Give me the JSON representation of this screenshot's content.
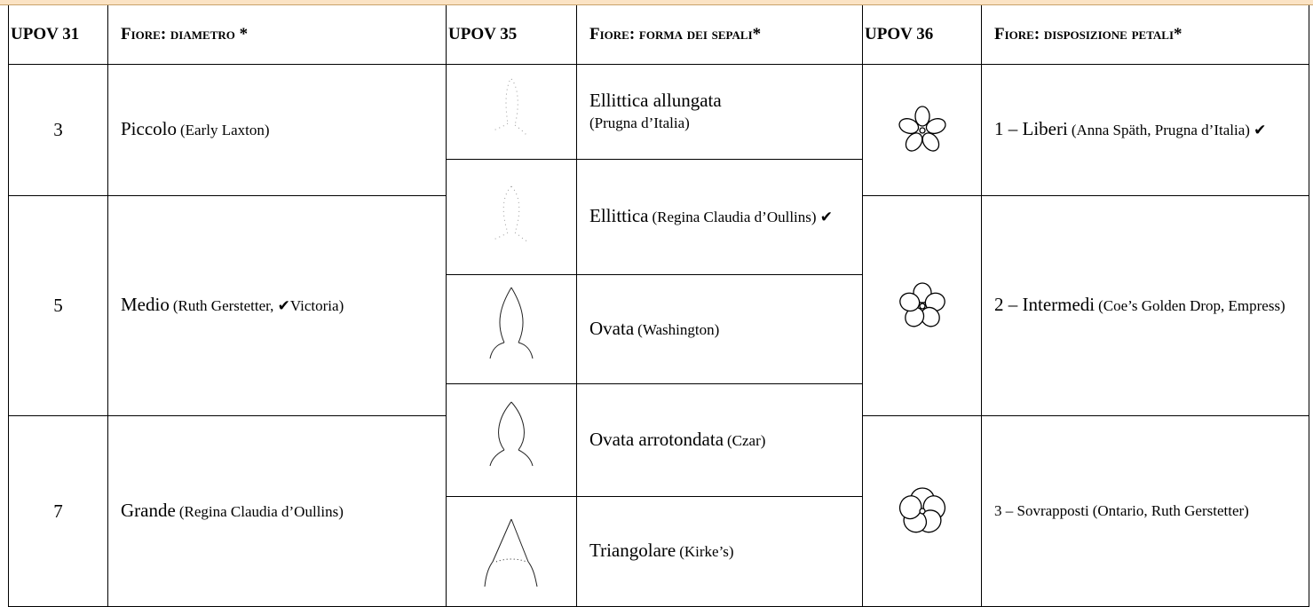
{
  "header": [
    "UPOV 31",
    "Fiore: diametro *",
    "UPOV 35",
    "Fiore: forma dei sepali*",
    "UPOV 36",
    "Fiore: disposizione petali*"
  ],
  "diametro": [
    {
      "code": "3",
      "name": "Piccolo",
      "note": "(Early Laxton)"
    },
    {
      "code": "5",
      "name": "Medio",
      "note": "(Ruth Gerstetter, ✔Victoria)"
    },
    {
      "code": "7",
      "name": "Grande",
      "note": "(Regina Claudia d’Oullins)"
    }
  ],
  "sepali": [
    {
      "name": "Ellittica allungata",
      "note": "(Prugna d’Italia)"
    },
    {
      "name": "Ellittica",
      "note": "(Regina Claudia d’Oullins) ✔"
    },
    {
      "name": "Ovata",
      "note": "(Washington)"
    },
    {
      "name": "Ovata arrotondata",
      "note": "(Czar)"
    },
    {
      "name": "Triangolare",
      "note": "(Kirke’s)"
    }
  ],
  "petali": [
    {
      "name": "1 – Liberi",
      "note": "(Anna Späth, Prugna d’Italia) ✔"
    },
    {
      "name": "2 – Intermedi",
      "note": "(Coe’s Golden Drop, Empress)"
    },
    {
      "name": "3 – Sovrapposti",
      "note": "(Ontario, Ruth Gerstetter)"
    }
  ]
}
